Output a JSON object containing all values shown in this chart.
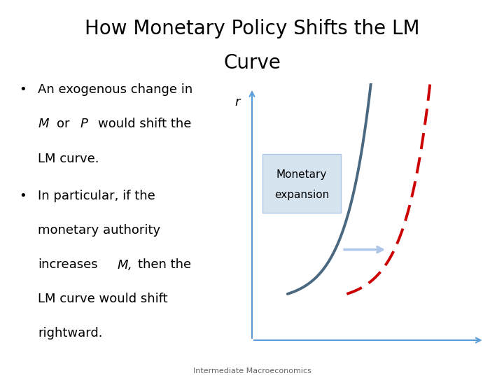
{
  "title_line1": "How Monetary Policy Shifts the LM",
  "title_line2": "Curve",
  "title_fontsize": 20,
  "title_color": "#000000",
  "background_color": "#ffffff",
  "lm_prime_color": "#4a6880",
  "lm_dbl_prime_color": "#cc0000",
  "axis_color": "#5b9bd5",
  "arrow_color": "#aec6e8",
  "box_facecolor": "#d6e4f0",
  "box_edgecolor": "#aec6e8",
  "footer_text": "Intermediate Macroeconomics",
  "footer_fontsize": 8,
  "text_fontsize": 13,
  "bullet_color": "#000000"
}
